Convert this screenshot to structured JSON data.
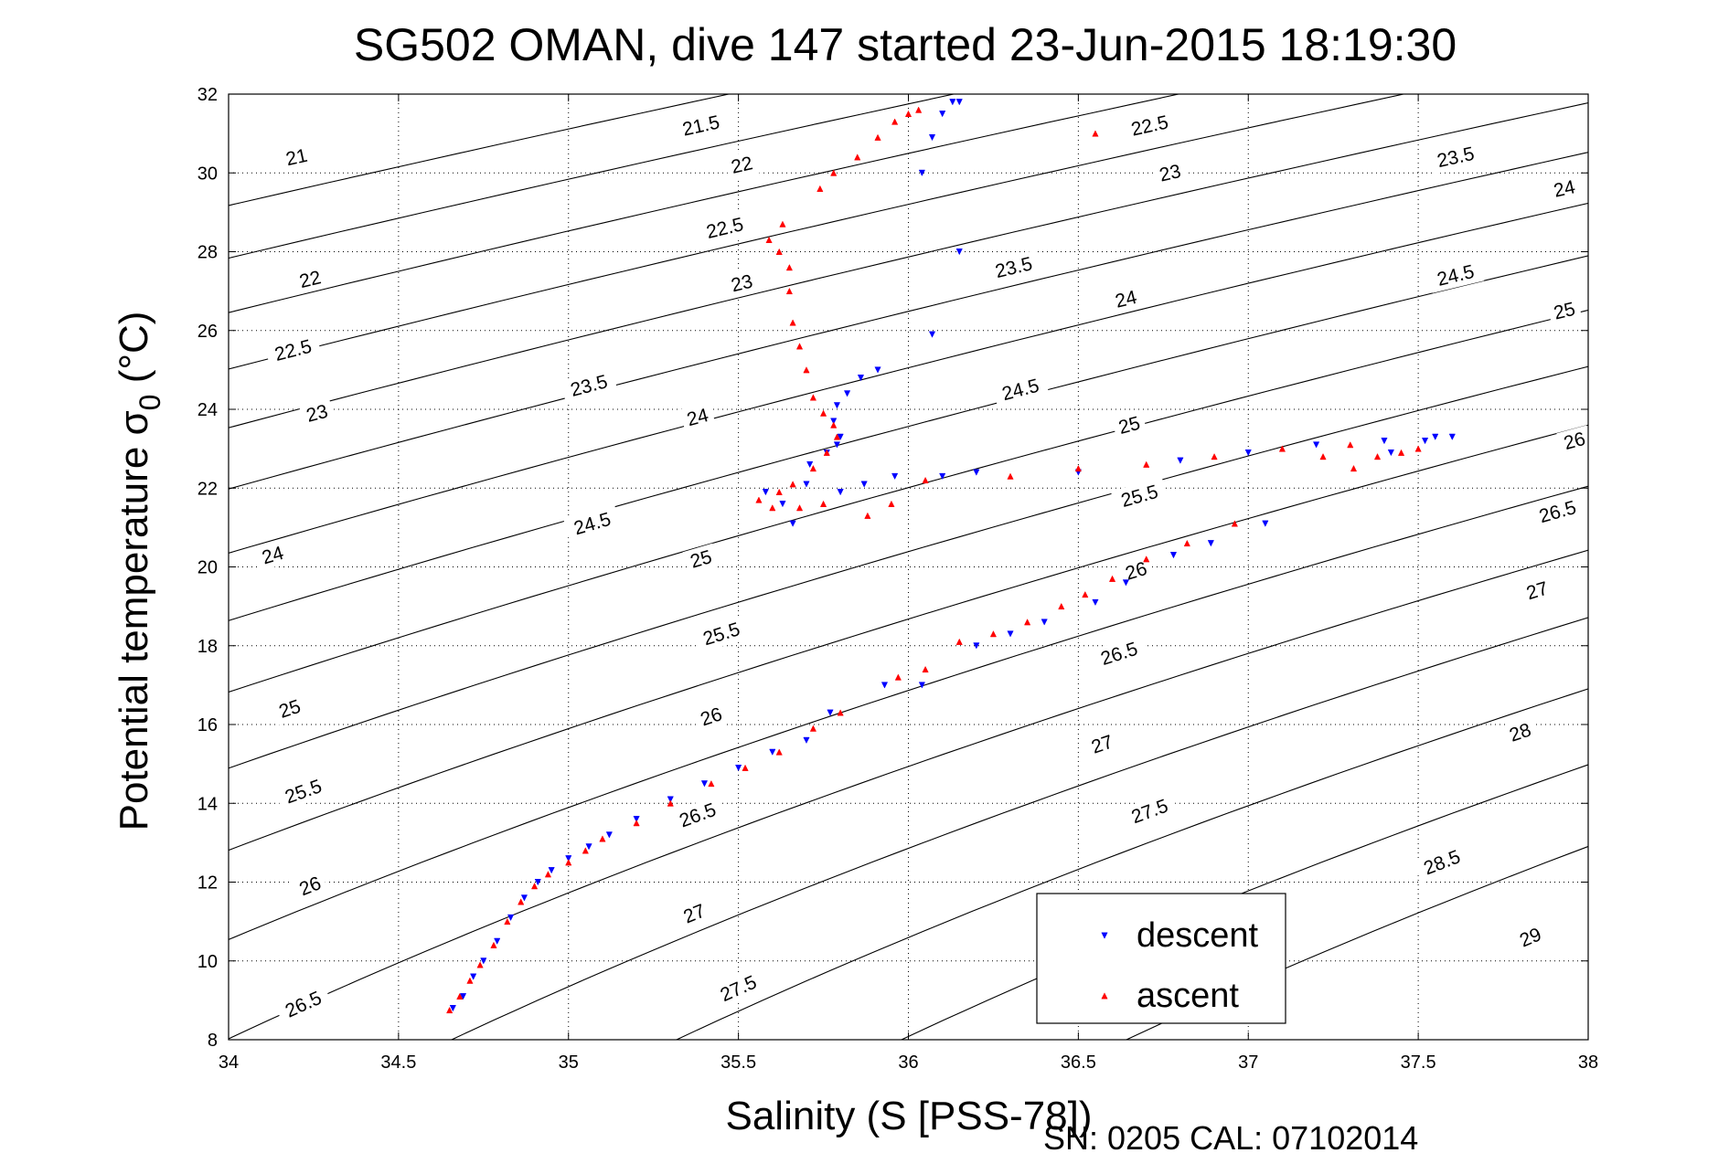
{
  "chart_data": {
    "type": "scatter",
    "title": "SG502 OMAN, dive 147 started 23-Jun-2015 18:19:30",
    "xlabel": "Salinity (S [PSS-78])",
    "ylabel": "Potential temperature σ",
    "ylabel_subscript": "0",
    "ylabel_unit": " (°C)",
    "footer": "SN: 0205  CAL: 07102014",
    "xlim": [
      34,
      38
    ],
    "ylim": [
      8,
      32
    ],
    "xticks": [
      34,
      34.5,
      35,
      35.5,
      36,
      36.5,
      37,
      37.5,
      38
    ],
    "xtick_labels": [
      "34",
      "34.5",
      "35",
      "35.5",
      "36",
      "36.5",
      "37",
      "37.5",
      "38"
    ],
    "yticks": [
      8,
      10,
      12,
      14,
      16,
      18,
      20,
      22,
      24,
      26,
      28,
      30,
      32
    ],
    "ytick_labels": [
      "8",
      "10",
      "12",
      "14",
      "16",
      "18",
      "20",
      "22",
      "24",
      "26",
      "28",
      "30",
      "32"
    ],
    "grid": true,
    "legend_position": "bottom-right",
    "isopycnals": {
      "levels": [
        21,
        21.5,
        22,
        22.5,
        23,
        23.5,
        24,
        24.5,
        25,
        25.5,
        26,
        26.5,
        27,
        27.5,
        28,
        28.5,
        29
      ],
      "labels": [
        {
          "text": "21",
          "s": 34.2,
          "t": 30.4
        },
        {
          "text": "21.5",
          "s": 35.39,
          "t": 31.2
        },
        {
          "text": "22",
          "s": 35.51,
          "t": 30.2
        },
        {
          "text": "22",
          "s": 34.24,
          "t": 27.3
        },
        {
          "text": "22.5",
          "s": 35.46,
          "t": 28.6
        },
        {
          "text": "22.5",
          "s": 34.19,
          "t": 25.5
        },
        {
          "text": "22.5",
          "s": 36.71,
          "t": 31.2
        },
        {
          "text": "23",
          "s": 34.26,
          "t": 23.9
        },
        {
          "text": "23",
          "s": 35.51,
          "t": 27.2
        },
        {
          "text": "23",
          "s": 36.77,
          "t": 30.0
        },
        {
          "text": "23.5",
          "s": 35.06,
          "t": 24.6
        },
        {
          "text": "23.5",
          "s": 36.31,
          "t": 27.6
        },
        {
          "text": "23.5",
          "s": 37.61,
          "t": 30.4
        },
        {
          "text": "24",
          "s": 34.13,
          "t": 20.3
        },
        {
          "text": "24",
          "s": 35.38,
          "t": 23.8
        },
        {
          "text": "24",
          "s": 36.64,
          "t": 26.8
        },
        {
          "text": "24",
          "s": 37.93,
          "t": 29.6
        },
        {
          "text": "24.5",
          "s": 35.07,
          "t": 21.1
        },
        {
          "text": "24.5",
          "s": 36.33,
          "t": 24.5
        },
        {
          "text": "24.5",
          "s": 37.61,
          "t": 27.4
        },
        {
          "text": "25",
          "s": 34.18,
          "t": 16.4
        },
        {
          "text": "25",
          "s": 35.39,
          "t": 20.2
        },
        {
          "text": "25",
          "s": 36.65,
          "t": 23.6
        },
        {
          "text": "25",
          "s": 37.93,
          "t": 26.5
        },
        {
          "text": "25.5",
          "s": 34.22,
          "t": 14.3
        },
        {
          "text": "25.5",
          "s": 35.45,
          "t": 18.3
        },
        {
          "text": "25.5",
          "s": 36.68,
          "t": 21.8
        },
        {
          "text": "26",
          "s": 34.24,
          "t": 11.9
        },
        {
          "text": "26",
          "s": 35.42,
          "t": 16.2
        },
        {
          "text": "26",
          "s": 36.67,
          "t": 19.9
        },
        {
          "text": "26",
          "s": 37.96,
          "t": 23.2
        },
        {
          "text": "26.5",
          "s": 34.22,
          "t": 8.9
        },
        {
          "text": "26.5",
          "s": 35.38,
          "t": 13.7
        },
        {
          "text": "26.5",
          "s": 36.62,
          "t": 17.8
        },
        {
          "text": "26.5",
          "s": 37.91,
          "t": 21.4
        },
        {
          "text": "27",
          "s": 35.37,
          "t": 11.2
        },
        {
          "text": "27",
          "s": 36.57,
          "t": 15.5
        },
        {
          "text": "27",
          "s": 37.85,
          "t": 19.4
        },
        {
          "text": "27.5",
          "s": 35.5,
          "t": 9.3
        },
        {
          "text": "27.5",
          "s": 36.71,
          "t": 13.8
        },
        {
          "text": "28",
          "s": 37.8,
          "t": 15.8
        },
        {
          "text": "28.5",
          "s": 37.57,
          "t": 12.5
        },
        {
          "text": "29",
          "s": 37.83,
          "t": 10.6
        }
      ]
    },
    "series": [
      {
        "name": "descent",
        "marker": "down-triangle",
        "color": "#0000ff",
        "points": [
          [
            34.66,
            8.8
          ],
          [
            34.69,
            9.1
          ],
          [
            34.72,
            9.6
          ],
          [
            34.75,
            10.0
          ],
          [
            34.79,
            10.5
          ],
          [
            34.83,
            11.1
          ],
          [
            34.87,
            11.6
          ],
          [
            34.91,
            12.0
          ],
          [
            34.95,
            12.3
          ],
          [
            35.0,
            12.6
          ],
          [
            35.06,
            12.9
          ],
          [
            35.12,
            13.2
          ],
          [
            35.2,
            13.6
          ],
          [
            35.3,
            14.1
          ],
          [
            35.4,
            14.5
          ],
          [
            35.5,
            14.9
          ],
          [
            35.6,
            15.3
          ],
          [
            35.7,
            15.6
          ],
          [
            35.77,
            16.3
          ],
          [
            35.93,
            17.0
          ],
          [
            36.04,
            17.0
          ],
          [
            36.2,
            18.0
          ],
          [
            36.3,
            18.3
          ],
          [
            36.4,
            18.6
          ],
          [
            36.55,
            19.1
          ],
          [
            36.64,
            19.6
          ],
          [
            36.78,
            20.3
          ],
          [
            36.89,
            20.6
          ],
          [
            37.05,
            21.1
          ],
          [
            35.58,
            21.9
          ],
          [
            35.63,
            21.6
          ],
          [
            35.66,
            21.1
          ],
          [
            35.7,
            22.1
          ],
          [
            35.8,
            21.9
          ],
          [
            35.87,
            22.1
          ],
          [
            35.96,
            22.3
          ],
          [
            36.1,
            22.3
          ],
          [
            36.2,
            22.4
          ],
          [
            36.5,
            22.4
          ],
          [
            36.8,
            22.7
          ],
          [
            37.0,
            22.9
          ],
          [
            37.2,
            23.1
          ],
          [
            37.4,
            23.2
          ],
          [
            37.55,
            23.3
          ],
          [
            37.6,
            23.3
          ],
          [
            37.52,
            23.2
          ],
          [
            37.42,
            22.9
          ],
          [
            35.71,
            22.6
          ],
          [
            35.76,
            22.9
          ],
          [
            35.79,
            23.1
          ],
          [
            35.8,
            23.3
          ],
          [
            35.78,
            23.7
          ],
          [
            35.79,
            24.1
          ],
          [
            35.82,
            24.4
          ],
          [
            35.86,
            24.8
          ],
          [
            35.91,
            25.0
          ],
          [
            36.07,
            25.9
          ],
          [
            36.15,
            28.0
          ],
          [
            36.04,
            30.0
          ],
          [
            36.07,
            30.9
          ],
          [
            36.1,
            31.5
          ],
          [
            36.13,
            31.8
          ],
          [
            36.15,
            31.8
          ]
        ]
      },
      {
        "name": "ascent",
        "marker": "up-triangle",
        "color": "#ff0000",
        "points": [
          [
            34.65,
            8.75
          ],
          [
            34.68,
            9.1
          ],
          [
            34.71,
            9.5
          ],
          [
            34.74,
            9.9
          ],
          [
            34.78,
            10.4
          ],
          [
            34.82,
            11.0
          ],
          [
            34.86,
            11.5
          ],
          [
            34.9,
            11.9
          ],
          [
            34.94,
            12.2
          ],
          [
            35.0,
            12.5
          ],
          [
            35.05,
            12.8
          ],
          [
            35.1,
            13.1
          ],
          [
            35.2,
            13.5
          ],
          [
            35.3,
            14.0
          ],
          [
            35.42,
            14.5
          ],
          [
            35.52,
            14.9
          ],
          [
            35.62,
            15.3
          ],
          [
            35.72,
            15.9
          ],
          [
            35.8,
            16.3
          ],
          [
            35.97,
            17.2
          ],
          [
            36.05,
            17.4
          ],
          [
            36.15,
            18.1
          ],
          [
            36.25,
            18.3
          ],
          [
            36.35,
            18.6
          ],
          [
            36.45,
            19.0
          ],
          [
            36.52,
            19.3
          ],
          [
            36.6,
            19.7
          ],
          [
            36.7,
            20.2
          ],
          [
            36.82,
            20.6
          ],
          [
            36.96,
            21.1
          ],
          [
            35.56,
            21.7
          ],
          [
            35.6,
            21.5
          ],
          [
            35.68,
            21.5
          ],
          [
            35.62,
            21.9
          ],
          [
            35.66,
            22.1
          ],
          [
            35.75,
            21.6
          ],
          [
            35.88,
            21.3
          ],
          [
            35.95,
            21.6
          ],
          [
            36.05,
            22.2
          ],
          [
            36.3,
            22.3
          ],
          [
            36.5,
            22.5
          ],
          [
            36.7,
            22.6
          ],
          [
            36.9,
            22.8
          ],
          [
            37.1,
            23.0
          ],
          [
            37.3,
            23.1
          ],
          [
            37.45,
            22.9
          ],
          [
            37.5,
            23.0
          ],
          [
            37.38,
            22.8
          ],
          [
            37.22,
            22.8
          ],
          [
            37.31,
            22.5
          ],
          [
            35.72,
            22.5
          ],
          [
            35.76,
            22.9
          ],
          [
            35.79,
            23.3
          ],
          [
            35.78,
            23.6
          ],
          [
            35.75,
            23.9
          ],
          [
            35.72,
            24.3
          ],
          [
            35.7,
            25.0
          ],
          [
            35.68,
            25.6
          ],
          [
            35.66,
            26.2
          ],
          [
            35.65,
            27.0
          ],
          [
            35.65,
            27.6
          ],
          [
            35.62,
            28.0
          ],
          [
            35.59,
            28.3
          ],
          [
            35.63,
            28.7
          ],
          [
            35.74,
            29.6
          ],
          [
            35.78,
            30.0
          ],
          [
            35.85,
            30.4
          ],
          [
            35.91,
            30.9
          ],
          [
            35.96,
            31.3
          ],
          [
            36.0,
            31.5
          ],
          [
            36.03,
            31.6
          ],
          [
            36.55,
            31.0
          ]
        ]
      }
    ]
  }
}
